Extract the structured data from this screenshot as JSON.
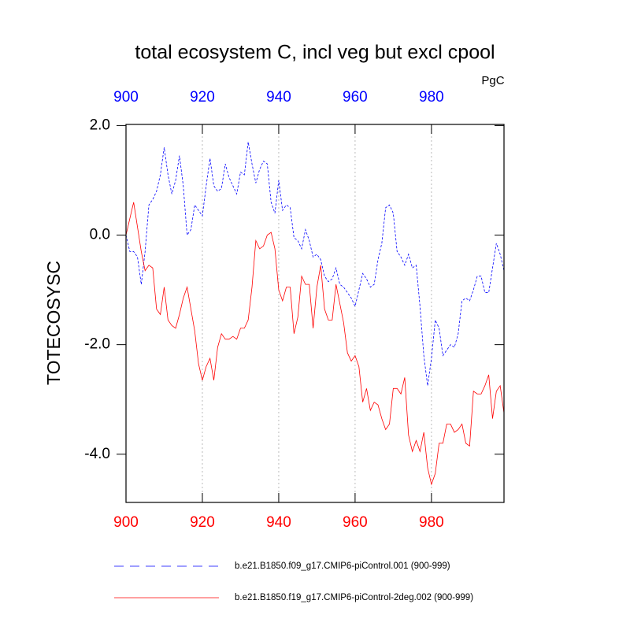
{
  "chart_data": {
    "type": "line",
    "title": "total ecosystem C, incl veg but excl cpool",
    "units": "PgC",
    "ylabel": "TOTECOSYSC",
    "x": [
      900,
      901,
      902,
      903,
      904,
      905,
      906,
      907,
      908,
      909,
      910,
      911,
      912,
      913,
      914,
      915,
      916,
      917,
      918,
      919,
      920,
      921,
      922,
      923,
      924,
      925,
      926,
      927,
      928,
      929,
      930,
      931,
      932,
      933,
      934,
      935,
      936,
      937,
      938,
      939,
      940,
      941,
      942,
      943,
      944,
      945,
      946,
      947,
      948,
      949,
      950,
      951,
      952,
      953,
      954,
      955,
      956,
      957,
      958,
      959,
      960,
      961,
      962,
      963,
      964,
      965,
      966,
      967,
      968,
      969,
      970,
      971,
      972,
      973,
      974,
      975,
      976,
      977,
      978,
      979,
      980,
      981,
      982,
      983,
      984,
      985,
      986,
      987,
      988,
      989,
      990,
      991,
      992,
      993,
      994,
      995,
      996,
      997,
      998,
      999
    ],
    "series": [
      {
        "name": "b.e21.B1850.f09_g17.CMIP6-piControl.001 (900-999)",
        "color": "#0000ff",
        "dash": true,
        "values": [
          0.0,
          -0.3,
          -0.3,
          -0.4,
          -0.9,
          -0.3,
          0.55,
          0.65,
          0.8,
          1.1,
          1.6,
          1.1,
          0.75,
          1.0,
          1.45,
          0.9,
          0.0,
          0.1,
          0.55,
          0.45,
          0.35,
          0.9,
          1.4,
          0.9,
          0.8,
          0.85,
          1.3,
          1.05,
          0.9,
          0.75,
          1.15,
          1.1,
          1.7,
          1.3,
          0.95,
          1.2,
          1.35,
          1.3,
          0.6,
          0.4,
          1.0,
          0.45,
          0.55,
          0.5,
          -0.05,
          -0.1,
          -0.25,
          0.1,
          -0.1,
          -0.4,
          -0.35,
          -0.45,
          -0.75,
          -0.85,
          -0.8,
          -0.6,
          -0.9,
          -0.95,
          -1.05,
          -1.15,
          -1.3,
          -1.0,
          -0.7,
          -0.8,
          -0.95,
          -0.9,
          -0.45,
          -0.15,
          0.5,
          0.55,
          0.4,
          -0.3,
          -0.4,
          -0.55,
          -0.35,
          -0.6,
          -0.55,
          -1.3,
          -2.2,
          -2.75,
          -2.25,
          -1.55,
          -1.7,
          -2.2,
          -2.1,
          -2.0,
          -2.05,
          -1.8,
          -1.2,
          -1.15,
          -1.2,
          -1.0,
          -0.75,
          -0.75,
          -1.05,
          -1.05,
          -0.6,
          -0.15,
          -0.35,
          -0.65
        ]
      },
      {
        "name": "b.e21.B1850.f19_g17.CMIP6-piControl-2deg.002 (900-999)",
        "color": "#ff0000",
        "dash": false,
        "values": [
          0.0,
          0.3,
          0.6,
          0.15,
          -0.3,
          -0.65,
          -0.55,
          -0.6,
          -1.35,
          -1.45,
          -0.95,
          -1.55,
          -1.65,
          -1.7,
          -1.45,
          -1.15,
          -0.95,
          -1.35,
          -1.75,
          -2.35,
          -2.65,
          -2.4,
          -2.25,
          -2.65,
          -2.05,
          -1.8,
          -1.9,
          -1.9,
          -1.85,
          -1.9,
          -1.7,
          -1.7,
          -1.55,
          -0.95,
          -0.1,
          -0.25,
          -0.2,
          0.0,
          0.05,
          -0.25,
          -1.0,
          -1.2,
          -0.95,
          -0.95,
          -1.8,
          -1.5,
          -0.75,
          -0.9,
          -0.9,
          -1.7,
          -0.95,
          -0.55,
          -1.35,
          -1.55,
          -1.55,
          -0.9,
          -1.25,
          -1.6,
          -2.15,
          -2.3,
          -2.2,
          -2.4,
          -3.05,
          -2.8,
          -3.2,
          -3.05,
          -3.1,
          -3.35,
          -3.55,
          -3.45,
          -2.8,
          -2.8,
          -2.9,
          -2.6,
          -3.65,
          -3.95,
          -3.75,
          -3.95,
          -3.6,
          -4.25,
          -4.55,
          -4.35,
          -3.8,
          -3.8,
          -3.45,
          -3.45,
          -3.6,
          -3.55,
          -3.45,
          -3.8,
          -3.85,
          -2.85,
          -2.9,
          -2.9,
          -2.75,
          -2.55,
          -3.35,
          -2.85,
          -2.75,
          -3.25
        ]
      }
    ],
    "xlim": [
      900,
      999
    ],
    "xticks": [
      900,
      920,
      940,
      960,
      980
    ],
    "top_axis_color": "#0000ff",
    "bottom_axis_color": "#ff0000",
    "ylim": [
      -4.88,
      2.02
    ],
    "yticks": [
      {
        "value": 2.0,
        "label": "2.0"
      },
      {
        "value": 0.0,
        "label": "0.0"
      },
      {
        "value": -2.0,
        "label": "-2.0"
      },
      {
        "value": -4.0,
        "label": "-4.0"
      }
    ],
    "grid": "x",
    "legend": "bottom"
  }
}
